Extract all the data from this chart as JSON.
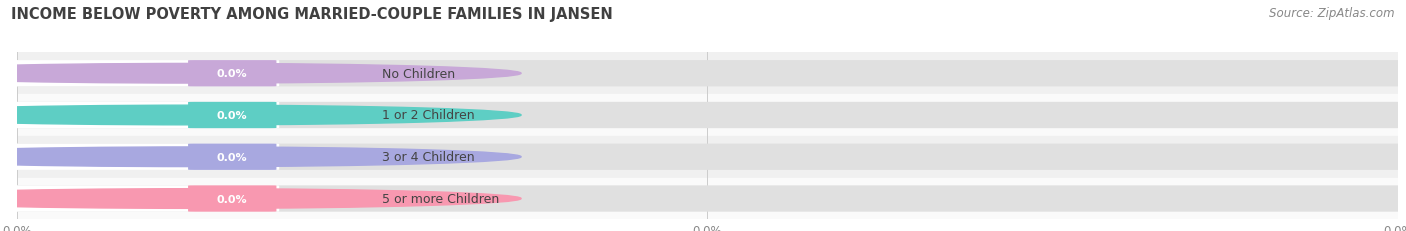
{
  "title": "INCOME BELOW POVERTY AMONG MARRIED-COUPLE FAMILIES IN JANSEN",
  "source": "Source: ZipAtlas.com",
  "categories": [
    "No Children",
    "1 or 2 Children",
    "3 or 4 Children",
    "5 or more Children"
  ],
  "values": [
    0.0,
    0.0,
    0.0,
    0.0
  ],
  "bar_colors": [
    "#c8a8d8",
    "#5ecec4",
    "#a8a8e0",
    "#f898b0"
  ],
  "title_fontsize": 10.5,
  "source_fontsize": 8.5,
  "background_color": "#ffffff",
  "row_bg_colors": [
    "#f0f0f0",
    "#fafafa",
    "#f0f0f0",
    "#fafafa"
  ],
  "bar_bg_color": "#e0e0e0",
  "tick_labels": [
    "0.0%",
    "0.0%",
    "0.0%"
  ],
  "value_label": "0.0%"
}
